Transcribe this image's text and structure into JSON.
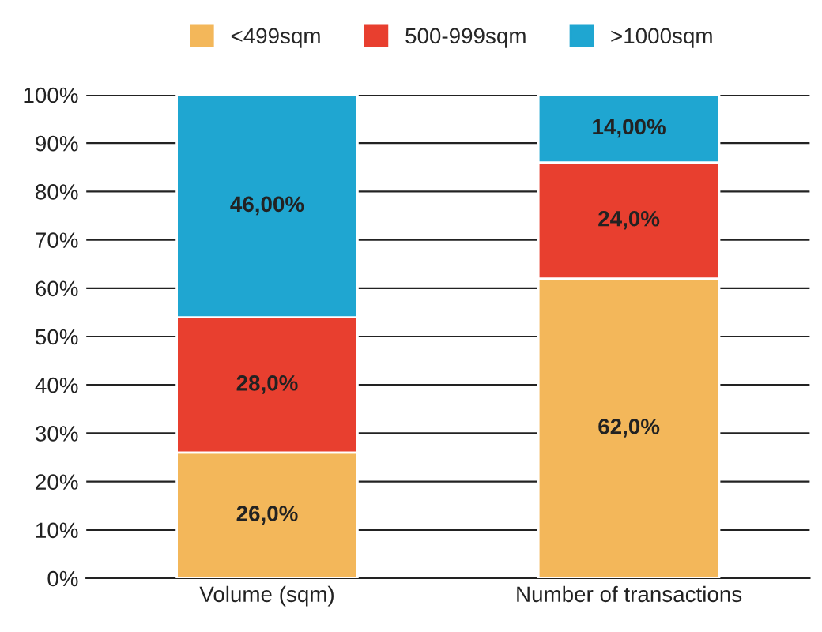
{
  "chart_data": {
    "type": "bar",
    "stacked": true,
    "categories": [
      "Volume (sqm)",
      "Number of transactions"
    ],
    "series": [
      {
        "name": "<499sqm",
        "color": "#f3b75a",
        "values": [
          26,
          62
        ],
        "value_labels": [
          "26,0%",
          "62,0%"
        ]
      },
      {
        "name": "500-999sqm",
        "color": "#e83f2f",
        "values": [
          28,
          24
        ],
        "value_labels": [
          "28,0%",
          "24,0%"
        ]
      },
      {
        "name": ">1000sqm",
        "color": "#1fa6d1",
        "values": [
          46,
          14
        ],
        "value_labels": [
          "46,00%",
          "14,00%"
        ]
      }
    ],
    "ylim": [
      0,
      100
    ],
    "yticks": [
      {
        "value": 0,
        "label": "0%"
      },
      {
        "value": 10,
        "label": "10%"
      },
      {
        "value": 20,
        "label": "20%"
      },
      {
        "value": 30,
        "label": "30%"
      },
      {
        "value": 40,
        "label": "40%"
      },
      {
        "value": 50,
        "label": "50%"
      },
      {
        "value": 60,
        "label": "60%"
      },
      {
        "value": 70,
        "label": "70%"
      },
      {
        "value": 80,
        "label": "80%"
      },
      {
        "value": 90,
        "label": "90%"
      },
      {
        "value": 100,
        "label": "100%"
      }
    ],
    "grid": "y",
    "legend": "top"
  }
}
